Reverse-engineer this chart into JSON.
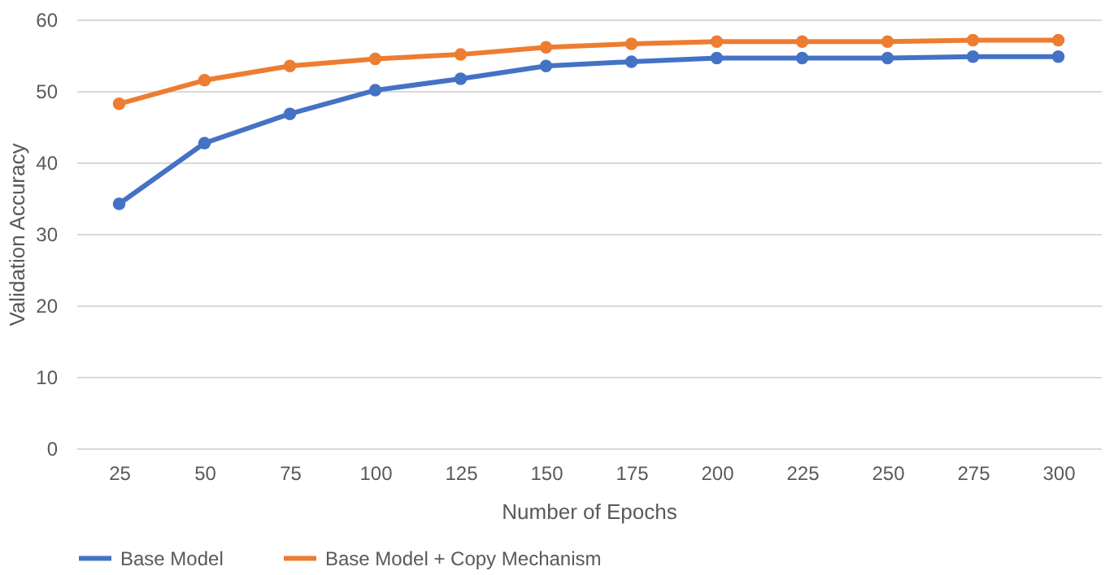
{
  "chart_data": {
    "type": "line",
    "xlabel": "Number of Epochs",
    "ylabel": "Validation Accuracy",
    "categories": [
      "25",
      "50",
      "75",
      "100",
      "125",
      "150",
      "175",
      "200",
      "225",
      "250",
      "275",
      "300"
    ],
    "series": [
      {
        "name": "Base Model",
        "color": "#4472c4",
        "values": [
          34.2,
          42.7,
          46.8,
          50.1,
          51.7,
          53.5,
          54.1,
          54.6,
          54.6,
          54.6,
          54.8,
          54.8
        ]
      },
      {
        "name": "Base Model + Copy Mechanism",
        "color": "#ed7d31",
        "values": [
          48.2,
          51.5,
          53.5,
          54.5,
          55.1,
          56.1,
          56.6,
          56.9,
          56.9,
          56.9,
          57.1,
          57.1
        ]
      }
    ],
    "ylim": [
      0,
      60
    ],
    "yticks": [
      0,
      10,
      20,
      30,
      40,
      50,
      60
    ],
    "grid": "y",
    "legend": "bottom",
    "marker": "circle",
    "line_style": "solid"
  }
}
